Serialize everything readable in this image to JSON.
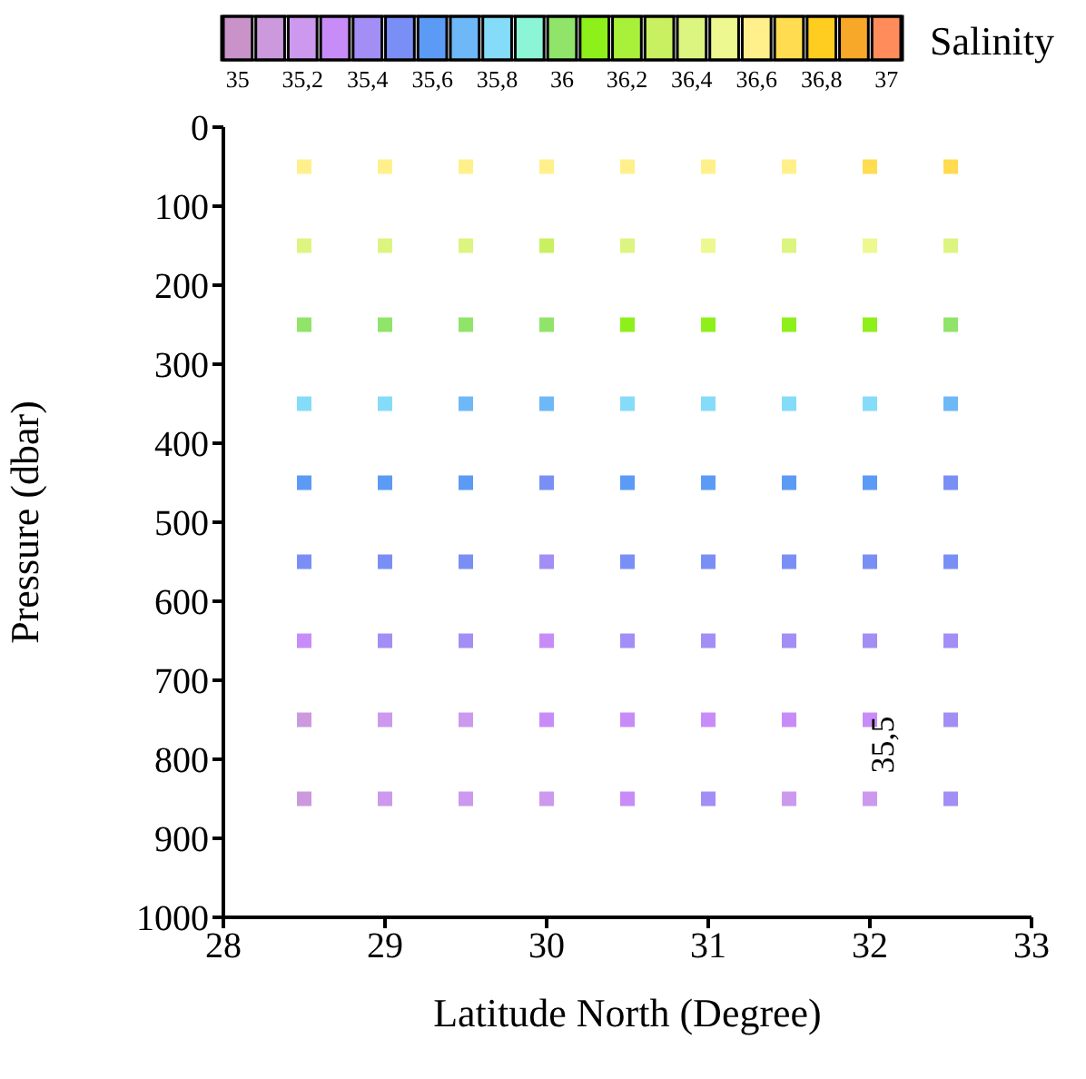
{
  "chart_data": {
    "type": "scatter",
    "marker": "square",
    "xlabel": "Latitude North (Degree)",
    "ylabel": "Pressure (dbar)",
    "clabel": "Salinity",
    "x": [
      28.5,
      29,
      29.5,
      30,
      30.5,
      31,
      31.5,
      32,
      32.5,
      28.5,
      29,
      29.5,
      30,
      30.5,
      31,
      31.5,
      32,
      32.5,
      28.5,
      29,
      29.5,
      30,
      30.5,
      31,
      31.5,
      32,
      32.5,
      28.5,
      29,
      29.5,
      30,
      30.5,
      31,
      31.5,
      32,
      32.5,
      28.5,
      29,
      29.5,
      30,
      30.5,
      31,
      31.5,
      32,
      32.5,
      28.5,
      29,
      29.5,
      30,
      30.5,
      31,
      31.5,
      32,
      32.5,
      28.5,
      29,
      29.5,
      30,
      30.5,
      31,
      31.5,
      32,
      32.5,
      28.5,
      29,
      29.5,
      30,
      30.5,
      31,
      31.5,
      32,
      32.5,
      28.5,
      29,
      29.5,
      30,
      30.5,
      31,
      31.5,
      32,
      32.5
    ],
    "values": [
      50,
      50,
      50,
      50,
      50,
      50,
      50,
      50,
      50,
      150,
      150,
      150,
      150,
      150,
      150,
      150,
      150,
      150,
      250,
      250,
      250,
      250,
      250,
      250,
      250,
      250,
      250,
      350,
      350,
      350,
      350,
      350,
      350,
      350,
      350,
      350,
      450,
      450,
      450,
      450,
      450,
      450,
      450,
      450,
      450,
      550,
      550,
      550,
      550,
      550,
      550,
      550,
      550,
      550,
      650,
      650,
      650,
      650,
      650,
      650,
      650,
      650,
      650,
      750,
      750,
      750,
      750,
      750,
      750,
      750,
      750,
      750,
      850,
      850,
      850,
      850,
      850,
      850,
      850,
      850,
      850
    ],
    "cvalues": [
      36.6,
      36.6,
      36.6,
      36.6,
      36.6,
      36.6,
      36.6,
      36.7,
      36.7,
      36.4,
      36.4,
      36.4,
      36.3,
      36.4,
      36.5,
      36.4,
      36.5,
      36.4,
      36.0,
      36.0,
      36.0,
      36.0,
      36.1,
      36.1,
      36.1,
      36.1,
      36.0,
      35.8,
      35.8,
      35.7,
      35.7,
      35.8,
      35.8,
      35.8,
      35.8,
      35.7,
      35.6,
      35.6,
      35.6,
      35.5,
      35.6,
      35.6,
      35.6,
      35.6,
      35.5,
      35.5,
      35.5,
      35.5,
      35.4,
      35.5,
      35.5,
      35.5,
      35.5,
      35.5,
      35.3,
      35.4,
      35.4,
      35.3,
      35.4,
      35.4,
      35.4,
      35.4,
      35.4,
      35.1,
      35.2,
      35.2,
      35.3,
      35.3,
      35.3,
      35.3,
      35.3,
      35.4,
      35.1,
      35.2,
      35.2,
      35.2,
      35.3,
      35.4,
      35.2,
      35.2,
      35.4
    ],
    "clim": [
      34.95,
      37.05
    ],
    "cticks": [
      35,
      {
        "value": 35.2,
        "label": "35,2"
      },
      {
        "value": 35.4,
        "label": "35,4"
      },
      {
        "value": 35.6,
        "label": "35,6"
      },
      {
        "value": 35.8,
        "label": "35,8"
      },
      36,
      {
        "value": 36.2,
        "label": "36,2"
      },
      {
        "value": 36.4,
        "label": "36,4"
      },
      {
        "value": 36.6,
        "label": "36,6"
      },
      {
        "value": 36.8,
        "label": "36,8"
      },
      37
    ],
    "xlim": [
      28,
      33
    ],
    "xticks": [
      28,
      29,
      30,
      31,
      32,
      33
    ],
    "ylim": [
      1000,
      0
    ],
    "yticks": [
      0,
      100,
      200,
      300,
      400,
      500,
      600,
      700,
      800,
      900,
      1000
    ],
    "annotations": [
      "35,5"
    ]
  }
}
